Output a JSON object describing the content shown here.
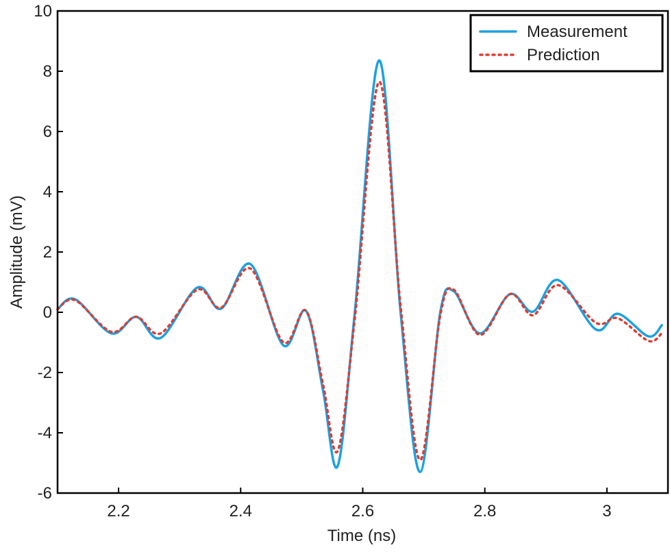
{
  "chart_data": {
    "type": "line",
    "x_label": "Time (ns)",
    "y_label": "Amplitude (mV)",
    "x": [
      2.1,
      2.129,
      2.188,
      2.229,
      2.269,
      2.329,
      2.368,
      2.416,
      2.47,
      2.507,
      2.535,
      2.559,
      2.587,
      2.627,
      2.662,
      2.694,
      2.727,
      2.749,
      2.792,
      2.841,
      2.879,
      2.92,
      2.982,
      3.018,
      3.068,
      3.09
    ],
    "series": [
      {
        "name": "Measurement",
        "color": "#1ba1e2",
        "dash": false,
        "values": [
          0.1,
          0.43,
          -0.7,
          -0.15,
          -0.85,
          0.82,
          0.12,
          1.6,
          -1.1,
          0.05,
          -2.6,
          -5.1,
          0,
          8.36,
          0,
          -5.3,
          0,
          0.7,
          -0.7,
          0.6,
          0.02,
          1.07,
          -0.57,
          -0.05,
          -0.8,
          -0.43
        ]
      },
      {
        "name": "Prediction",
        "color": "#e03c31",
        "dash": true,
        "values": [
          0.1,
          0.4,
          -0.65,
          -0.15,
          -0.7,
          0.75,
          0.15,
          1.45,
          -1.0,
          0.05,
          -2.4,
          -4.6,
          -0.2,
          7.65,
          0.2,
          -4.9,
          -0.1,
          0.75,
          -0.75,
          0.6,
          -0.1,
          0.9,
          -0.35,
          -0.2,
          -0.95,
          -0.7
        ]
      }
    ],
    "xlim": [
      2.1,
      3.1
    ],
    "ylim": [
      -6,
      10
    ],
    "xticks": [
      2.2,
      2.4,
      2.6,
      2.8,
      3
    ],
    "yticks": [
      -6,
      -4,
      -2,
      0,
      2,
      4,
      6,
      8,
      10
    ],
    "legend": "upper right"
  }
}
